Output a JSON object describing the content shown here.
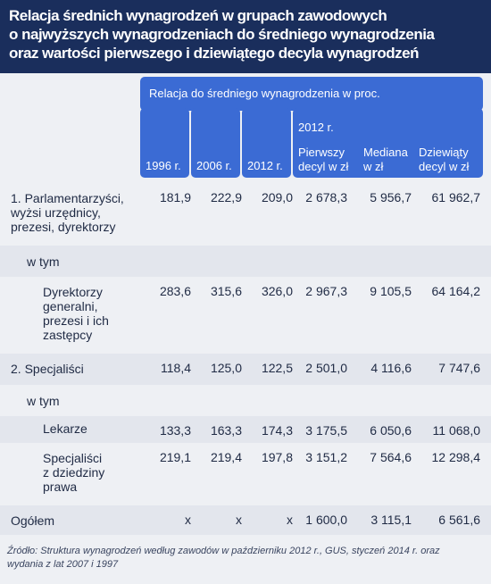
{
  "chart_data": {
    "type": "table",
    "title_lines": [
      "Relacja średnich wynagrodzeń w grupach zawodowych",
      "o najwyższych wynagrodzeniach do średniego wynagrodzenia",
      "oraz wartości pierwszego i dziewiątego decyla wynagrodzeń"
    ],
    "header": {
      "banner": "Relacja do średniego wynagrodzenia w proc.",
      "years": [
        "1996 r.",
        "2006 r.",
        "2012 r."
      ],
      "group_year": "2012 r.",
      "sub_columns": [
        [
          "Pierwszy",
          "decyl w zł"
        ],
        [
          "Mediana",
          "w zł"
        ],
        [
          "Dziewiąty",
          "decyl w zł"
        ]
      ]
    },
    "rows": [
      {
        "label": [
          "1. Parlamentarzyści,",
          "wyżsi urzędnicy,",
          "prezesi, dyrektorzy"
        ],
        "values": [
          "181,9",
          "222,9",
          "209,0",
          "2 678,3",
          "5 956,7",
          "61 962,7"
        ]
      },
      {
        "label": [
          "w tym"
        ],
        "values": [
          "",
          "",
          "",
          "",
          "",
          ""
        ]
      },
      {
        "label": [
          "Dyrektorzy",
          "generalni,",
          "prezesi i ich",
          "zastępcy"
        ],
        "values": [
          "283,6",
          "315,6",
          "326,0",
          "2 967,3",
          "9 105,5",
          "64 164,2"
        ]
      },
      {
        "label": [
          "2. Specjaliści"
        ],
        "values": [
          "118,4",
          "125,0",
          "122,5",
          "2 501,0",
          "4 116,6",
          "7 747,6"
        ]
      },
      {
        "label": [
          "w tym"
        ],
        "values": [
          "",
          "",
          "",
          "",
          "",
          ""
        ]
      },
      {
        "label": [
          "Lekarze"
        ],
        "values": [
          "133,3",
          "163,3",
          "174,3",
          "3 175,5",
          "6 050,6",
          "11 068,0"
        ]
      },
      {
        "label": [
          "Specjaliści",
          "z dziedziny",
          "prawa"
        ],
        "values": [
          "219,1",
          "219,4",
          "197,8",
          "3 151,2",
          "7 564,6",
          "12 298,4"
        ]
      },
      {
        "label": [
          "Ogółem"
        ],
        "values": [
          "x",
          "x",
          "x",
          "1 600,0",
          "3 115,1",
          "6 561,6"
        ]
      }
    ],
    "source_lines": [
      "Źródło: Struktura wynagrodzeń według zawodów w październiku 2012 r., GUS, styczeń 2014 r. oraz",
      "wydania z lat 2007 i 1997"
    ]
  }
}
